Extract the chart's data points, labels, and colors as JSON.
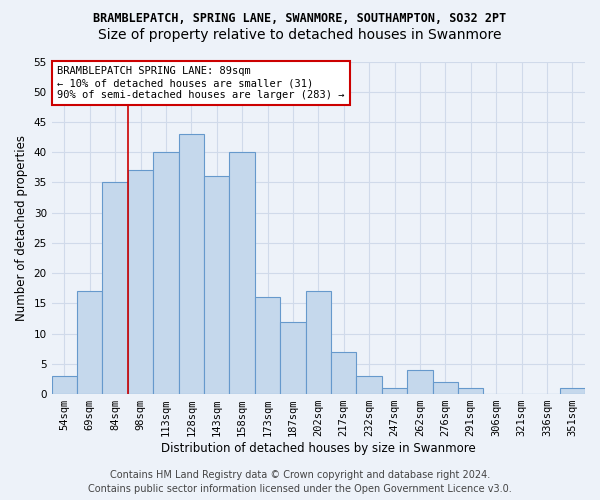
{
  "title1": "BRAMBLEPATCH, SPRING LANE, SWANMORE, SOUTHAMPTON, SO32 2PT",
  "title2": "Size of property relative to detached houses in Swanmore",
  "xlabel": "Distribution of detached houses by size in Swanmore",
  "ylabel": "Number of detached properties",
  "footer1": "Contains HM Land Registry data © Crown copyright and database right 2024.",
  "footer2": "Contains public sector information licensed under the Open Government Licence v3.0.",
  "categories": [
    "54sqm",
    "69sqm",
    "84sqm",
    "98sqm",
    "113sqm",
    "128sqm",
    "143sqm",
    "158sqm",
    "173sqm",
    "187sqm",
    "202sqm",
    "217sqm",
    "232sqm",
    "247sqm",
    "262sqm",
    "276sqm",
    "291sqm",
    "306sqm",
    "321sqm",
    "336sqm",
    "351sqm"
  ],
  "values": [
    3,
    17,
    35,
    37,
    40,
    43,
    36,
    40,
    16,
    12,
    17,
    7,
    3,
    1,
    4,
    2,
    1,
    0,
    0,
    0,
    1
  ],
  "bar_color": "#c5d8ec",
  "bar_edge_color": "#6699cc",
  "annotation_title": "BRAMBLEPATCH SPRING LANE: 89sqm",
  "annotation_line1": "← 10% of detached houses are smaller (31)",
  "annotation_line2": "90% of semi-detached houses are larger (283) →",
  "annotation_box_color": "#ffffff",
  "annotation_box_edge": "#cc0000",
  "vline_color": "#cc0000",
  "vline_x_index": 2.5,
  "ylim": [
    0,
    55
  ],
  "yticks": [
    0,
    5,
    10,
    15,
    20,
    25,
    30,
    35,
    40,
    45,
    50,
    55
  ],
  "bg_color": "#edf2f9",
  "grid_color": "#d0daea",
  "title1_fontsize": 8.5,
  "title2_fontsize": 10,
  "annot_fontsize": 7.5,
  "axis_label_fontsize": 8.5,
  "tick_fontsize": 7.5,
  "footer_fontsize": 7.0
}
